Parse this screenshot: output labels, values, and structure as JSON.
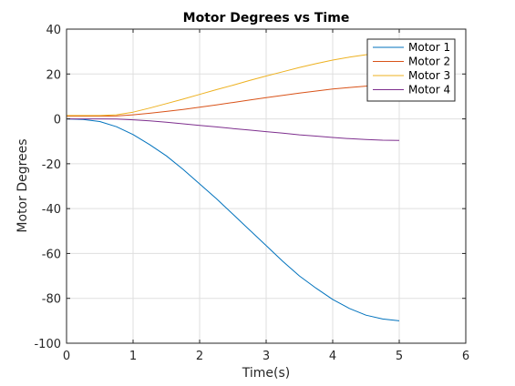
{
  "chart_data": {
    "type": "line",
    "title": "Motor Degrees vs Time",
    "xlabel": "Time(s)",
    "ylabel": "Motor Degrees",
    "xlim": [
      0,
      6
    ],
    "ylim": [
      -100,
      40
    ],
    "xticks": [
      0,
      1,
      2,
      3,
      4,
      5,
      6
    ],
    "yticks": [
      -100,
      -80,
      -60,
      -40,
      -20,
      0,
      20,
      40
    ],
    "grid": true,
    "legend": "top-right",
    "x": [
      0,
      0.25,
      0.5,
      0.75,
      1,
      1.25,
      1.5,
      1.75,
      2,
      2.25,
      2.5,
      2.75,
      3,
      3.25,
      3.5,
      3.75,
      4,
      4.25,
      4.5,
      4.75,
      5
    ],
    "series": [
      {
        "name": "Motor 1",
        "color": "#0072BD",
        "values": [
          0,
          -0.3,
          -1.2,
          -3.5,
          -7,
          -11.5,
          -16.5,
          -22.5,
          -29,
          -35.5,
          -42.5,
          -49.5,
          -56.5,
          -63.5,
          -70,
          -75.5,
          -80.5,
          -84.5,
          -87.5,
          -89.2,
          -90
        ]
      },
      {
        "name": "Motor 2",
        "color": "#D95319",
        "values": [
          1.2,
          1.2,
          1.2,
          1.3,
          1.8,
          2.5,
          3.3,
          4.2,
          5.2,
          6.2,
          7.3,
          8.4,
          9.5,
          10.5,
          11.5,
          12.4,
          13.3,
          14,
          14.6,
          15,
          15.2
        ]
      },
      {
        "name": "Motor 3",
        "color": "#EDB120",
        "values": [
          1.5,
          1.5,
          1.5,
          1.8,
          3,
          4.8,
          6.8,
          8.8,
          10.9,
          13,
          15,
          17.1,
          19.1,
          21,
          22.9,
          24.6,
          26.2,
          27.5,
          28.6,
          29.4,
          29.8
        ]
      },
      {
        "name": "Motor 4",
        "color": "#7E2F8E",
        "values": [
          0,
          0,
          0,
          -0.1,
          -0.4,
          -0.9,
          -1.5,
          -2.2,
          -2.9,
          -3.6,
          -4.3,
          -5,
          -5.7,
          -6.4,
          -7.1,
          -7.7,
          -8.3,
          -8.8,
          -9.2,
          -9.5,
          -9.6
        ]
      }
    ]
  }
}
